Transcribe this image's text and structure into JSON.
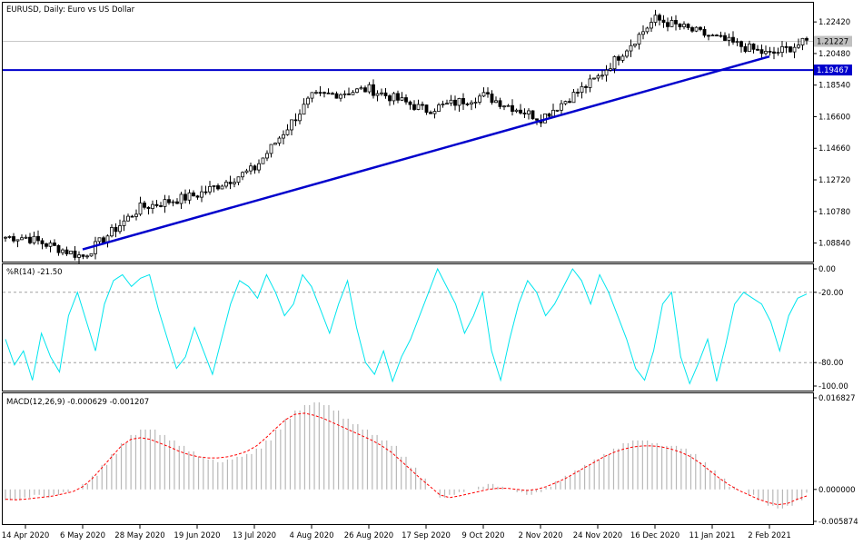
{
  "colors": {
    "background": "#ffffff",
    "frame": "#000000",
    "candle": "#000000",
    "trendline": "#0000cc",
    "williams": "#00e5ee",
    "macd_hist": "#b8b8b8",
    "macd_signal": "#ff0000",
    "tag_current": "#c0c0c0",
    "tag_level": "#0000cc"
  },
  "chart_data": [
    {
      "type": "candlestick",
      "title": "EURUSD, Daily: Euro vs US Dollar",
      "x_labels": [
        "14 Apr 2020",
        "6 May 2020",
        "28 May 2020",
        "19 Jun 2020",
        "13 Jul 2020",
        "4 Aug 2020",
        "26 Aug 2020",
        "17 Sep 2020",
        "9 Oct 2020",
        "2 Nov 2020",
        "24 Nov 2020",
        "16 Dec 2020",
        "11 Jan 2021",
        "2 Feb 2021"
      ],
      "y_ticks": [
        "1.22420",
        "1.20480",
        "1.18540",
        "1.16600",
        "1.14660",
        "1.12720",
        "1.10780",
        "1.08840"
      ],
      "ylim": [
        1.077,
        1.236
      ],
      "current_price": "1.21227",
      "horizontal_level": "1.19467",
      "trendline": {
        "from": [
          "6 May 2020",
          1.0845
        ],
        "to": [
          "2 Feb 2021",
          1.203
        ]
      },
      "close_path": [
        [
          "14 Apr 2020",
          1.092
        ],
        [
          "6 May 2020",
          1.08
        ],
        [
          "28 May 2020",
          1.11
        ],
        [
          "19 Jun 2020",
          1.118
        ],
        [
          "13 Jul 2020",
          1.134
        ],
        [
          "4 Aug 2020",
          1.178
        ],
        [
          "26 Aug 2020",
          1.183
        ],
        [
          "17 Sep 2020",
          1.17
        ],
        [
          "9 Oct 2020",
          1.179
        ],
        [
          "2 Nov 2020",
          1.165
        ],
        [
          "24 Nov 2020",
          1.19
        ],
        [
          "16 Dec 2020",
          1.226
        ],
        [
          "11 Jan 2021",
          1.215
        ],
        [
          "2 Feb 2021",
          1.204
        ],
        [
          "10 Feb 2021",
          1.212
        ]
      ]
    },
    {
      "type": "line",
      "title": "%R(14) -21.50",
      "y_ticks": [
        "0.00",
        "-20.00",
        "-80.00",
        "-100.00"
      ],
      "ylim": [
        -100,
        0
      ],
      "levels": [
        -20,
        -80
      ],
      "series": [
        {
          "values": [
            -60,
            -82,
            -70,
            -95,
            -55,
            -75,
            -88,
            -40,
            -20,
            -45,
            -70,
            -30,
            -10,
            -5,
            -15,
            -8,
            -5,
            -35,
            -60,
            -85,
            -75,
            -50,
            -70,
            -90,
            -60,
            -30,
            -10,
            -15,
            -25,
            -5,
            -20,
            -40,
            -30,
            -5,
            -15,
            -35,
            -55,
            -30,
            -10,
            -50,
            -80,
            -90,
            -70,
            -96,
            -75,
            -60,
            -40,
            -20,
            0,
            -15,
            -30,
            -55,
            -40,
            -20,
            -70,
            -95,
            -60,
            -30,
            -10,
            -20,
            -40,
            -30,
            -15,
            0,
            -10,
            -30,
            -5,
            -20,
            -40,
            -60,
            -85,
            -95,
            -70,
            -30,
            -20,
            -75,
            -98,
            -80,
            -60,
            -96,
            -65,
            -30,
            -20,
            -25,
            -30,
            -45,
            -70,
            -40,
            -25,
            -21.5
          ]
        }
      ]
    },
    {
      "type": "bar",
      "title": "MACD(12,26,9) -0.000629 -0.001207",
      "y_ticks": [
        "0.016827",
        "0.000000",
        "-0.005874"
      ],
      "ylim": [
        -0.005874,
        0.016827
      ],
      "histogram": [
        -0.002,
        -0.002,
        -0.0015,
        -0.001,
        -0.0015,
        -0.001,
        -0.0005,
        0.0,
        0.001,
        0.0025,
        0.0045,
        0.0065,
        0.0085,
        0.01,
        0.011,
        0.011,
        0.01,
        0.009,
        0.008,
        0.007,
        0.006,
        0.0055,
        0.005,
        0.0055,
        0.006,
        0.0065,
        0.0075,
        0.009,
        0.011,
        0.013,
        0.0145,
        0.0155,
        0.016,
        0.0155,
        0.0145,
        0.013,
        0.012,
        0.011,
        0.01,
        0.009,
        0.008,
        0.006,
        0.004,
        0.002,
        0.0,
        -0.0015,
        -0.001,
        -0.0005,
        0.0,
        0.0005,
        0.001,
        0.0005,
        0.0,
        -0.0005,
        -0.001,
        -0.0005,
        0.0005,
        0.0015,
        0.0025,
        0.0035,
        0.0045,
        0.0055,
        0.0065,
        0.0075,
        0.0085,
        0.009,
        0.009,
        0.0085,
        0.008,
        0.008,
        0.0075,
        0.0065,
        0.005,
        0.0035,
        0.002,
        0.0005,
        0.0,
        -0.001,
        -0.002,
        -0.003,
        -0.0035,
        -0.003,
        -0.002,
        -0.0006
      ],
      "signal": [
        -0.0018,
        -0.0019,
        -0.0018,
        -0.0016,
        -0.0014,
        -0.0012,
        -0.0008,
        -0.0004,
        0.0005,
        0.002,
        0.004,
        0.006,
        0.008,
        0.0092,
        0.0095,
        0.0092,
        0.0085,
        0.0078,
        0.007,
        0.0064,
        0.006,
        0.0058,
        0.0058,
        0.006,
        0.0064,
        0.007,
        0.008,
        0.0095,
        0.0112,
        0.0128,
        0.0138,
        0.014,
        0.0136,
        0.013,
        0.0122,
        0.0114,
        0.0106,
        0.0098,
        0.009,
        0.008,
        0.0068,
        0.0052,
        0.0036,
        0.002,
        0.0005,
        -0.001,
        -0.0015,
        -0.0012,
        -0.0008,
        -0.0004,
        0.0,
        0.0002,
        0.0002,
        0.0,
        -0.0002,
        0.0,
        0.0005,
        0.0012,
        0.002,
        0.003,
        0.004,
        0.005,
        0.006,
        0.0068,
        0.0074,
        0.0078,
        0.008,
        0.008,
        0.0078,
        0.0074,
        0.0068,
        0.006,
        0.0048,
        0.0034,
        0.002,
        0.0008,
        -0.0002,
        -0.001,
        -0.0018,
        -0.0024,
        -0.0028,
        -0.0026,
        -0.0018,
        -0.0012
      ]
    }
  ]
}
